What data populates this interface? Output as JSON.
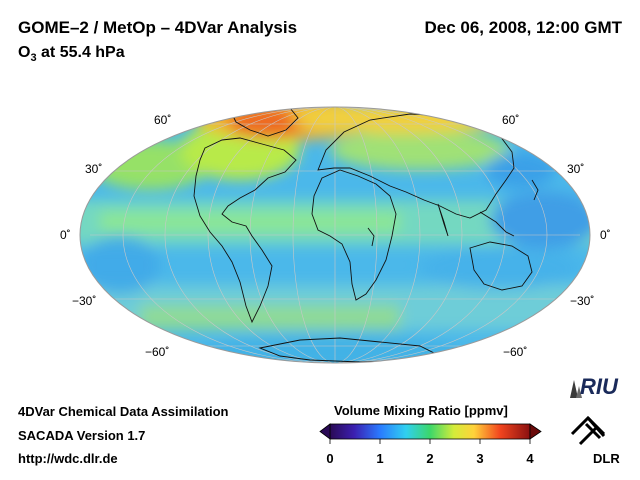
{
  "header": {
    "title": "GOME–2 / MetOp – 4DVar Analysis",
    "subtitle_main": "O",
    "subtitle_sub": "3",
    "subtitle_rest": " at 55.4 hPa",
    "date": "Dec 06, 2008, 12:00 GMT"
  },
  "map": {
    "projection": "Mollweide",
    "lat_labels": {
      "n60_left": "60˚",
      "n60_right": "60˚",
      "n30_left": "30˚",
      "n30_right": "30˚",
      "eq_left": "0˚",
      "eq_right": "0˚",
      "s30_left": "−30˚",
      "s30_right": "−30˚",
      "s60_left": "−60˚",
      "s60_right": "−60˚"
    }
  },
  "footer": {
    "line1": "4DVar Chemical Data Assimilation",
    "line2": "SACADA Version 1.7",
    "line3": "http://wdc.dlr.de"
  },
  "colorbar": {
    "title": "Volume Mixing Ratio [ppmv]",
    "ticks": [
      "0",
      "1",
      "2",
      "3",
      "4"
    ],
    "range": [
      0,
      4
    ]
  },
  "logos": {
    "riu": "RIU",
    "dlr": "DLR"
  },
  "colors": {
    "ocean_base": "#48b8ea",
    "equator_band": "#8fe0a8",
    "arctic_max": "#e8581c"
  }
}
